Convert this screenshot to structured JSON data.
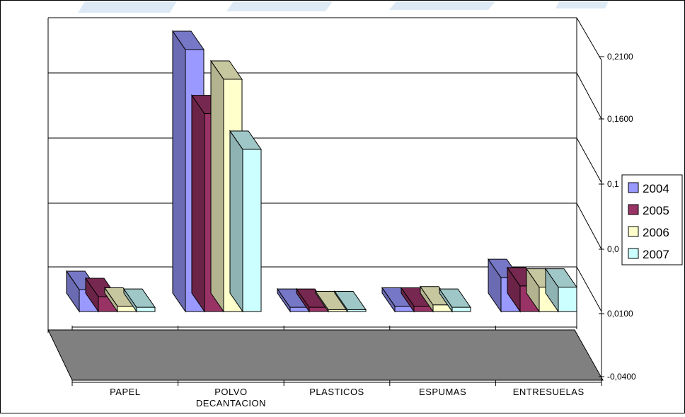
{
  "chart_data": {
    "type": "bar",
    "title": "",
    "xlabel": "",
    "ylabel": "",
    "categories": [
      "PAPEL",
      "POLVO DECANTACION",
      "PLASTICOS",
      "ESPUMAS",
      "ENTRESUELAS"
    ],
    "series": [
      {
        "name": "2004",
        "values": [
          0.0185,
          0.2205,
          0.0035,
          0.0045,
          0.0285
        ],
        "color": "#9999FF"
      },
      {
        "name": "2005",
        "values": [
          0.0125,
          0.1665,
          0.0035,
          0.0045,
          0.0215
        ],
        "color": "#993366"
      },
      {
        "name": "2006",
        "values": [
          0.0045,
          0.1955,
          0.0015,
          0.0055,
          0.0205
        ],
        "color": "#FFFFCC"
      },
      {
        "name": "2007",
        "values": [
          0.0035,
          0.1365,
          0.0015,
          0.0035,
          0.0205
        ],
        "color": "#CCFFFF"
      }
    ],
    "y_ticks": [
      "-0,0400",
      "0,0100",
      "0,0",
      "0,1",
      "0,1600",
      "0,2100"
    ],
    "ylim": [
      -0.04,
      0.21
    ],
    "grid": true,
    "legend": {
      "position": "right",
      "entries": [
        "2004",
        "2005",
        "2006",
        "2007"
      ]
    },
    "floor_color": "#808080",
    "wall_color": "#FFFFFF"
  }
}
